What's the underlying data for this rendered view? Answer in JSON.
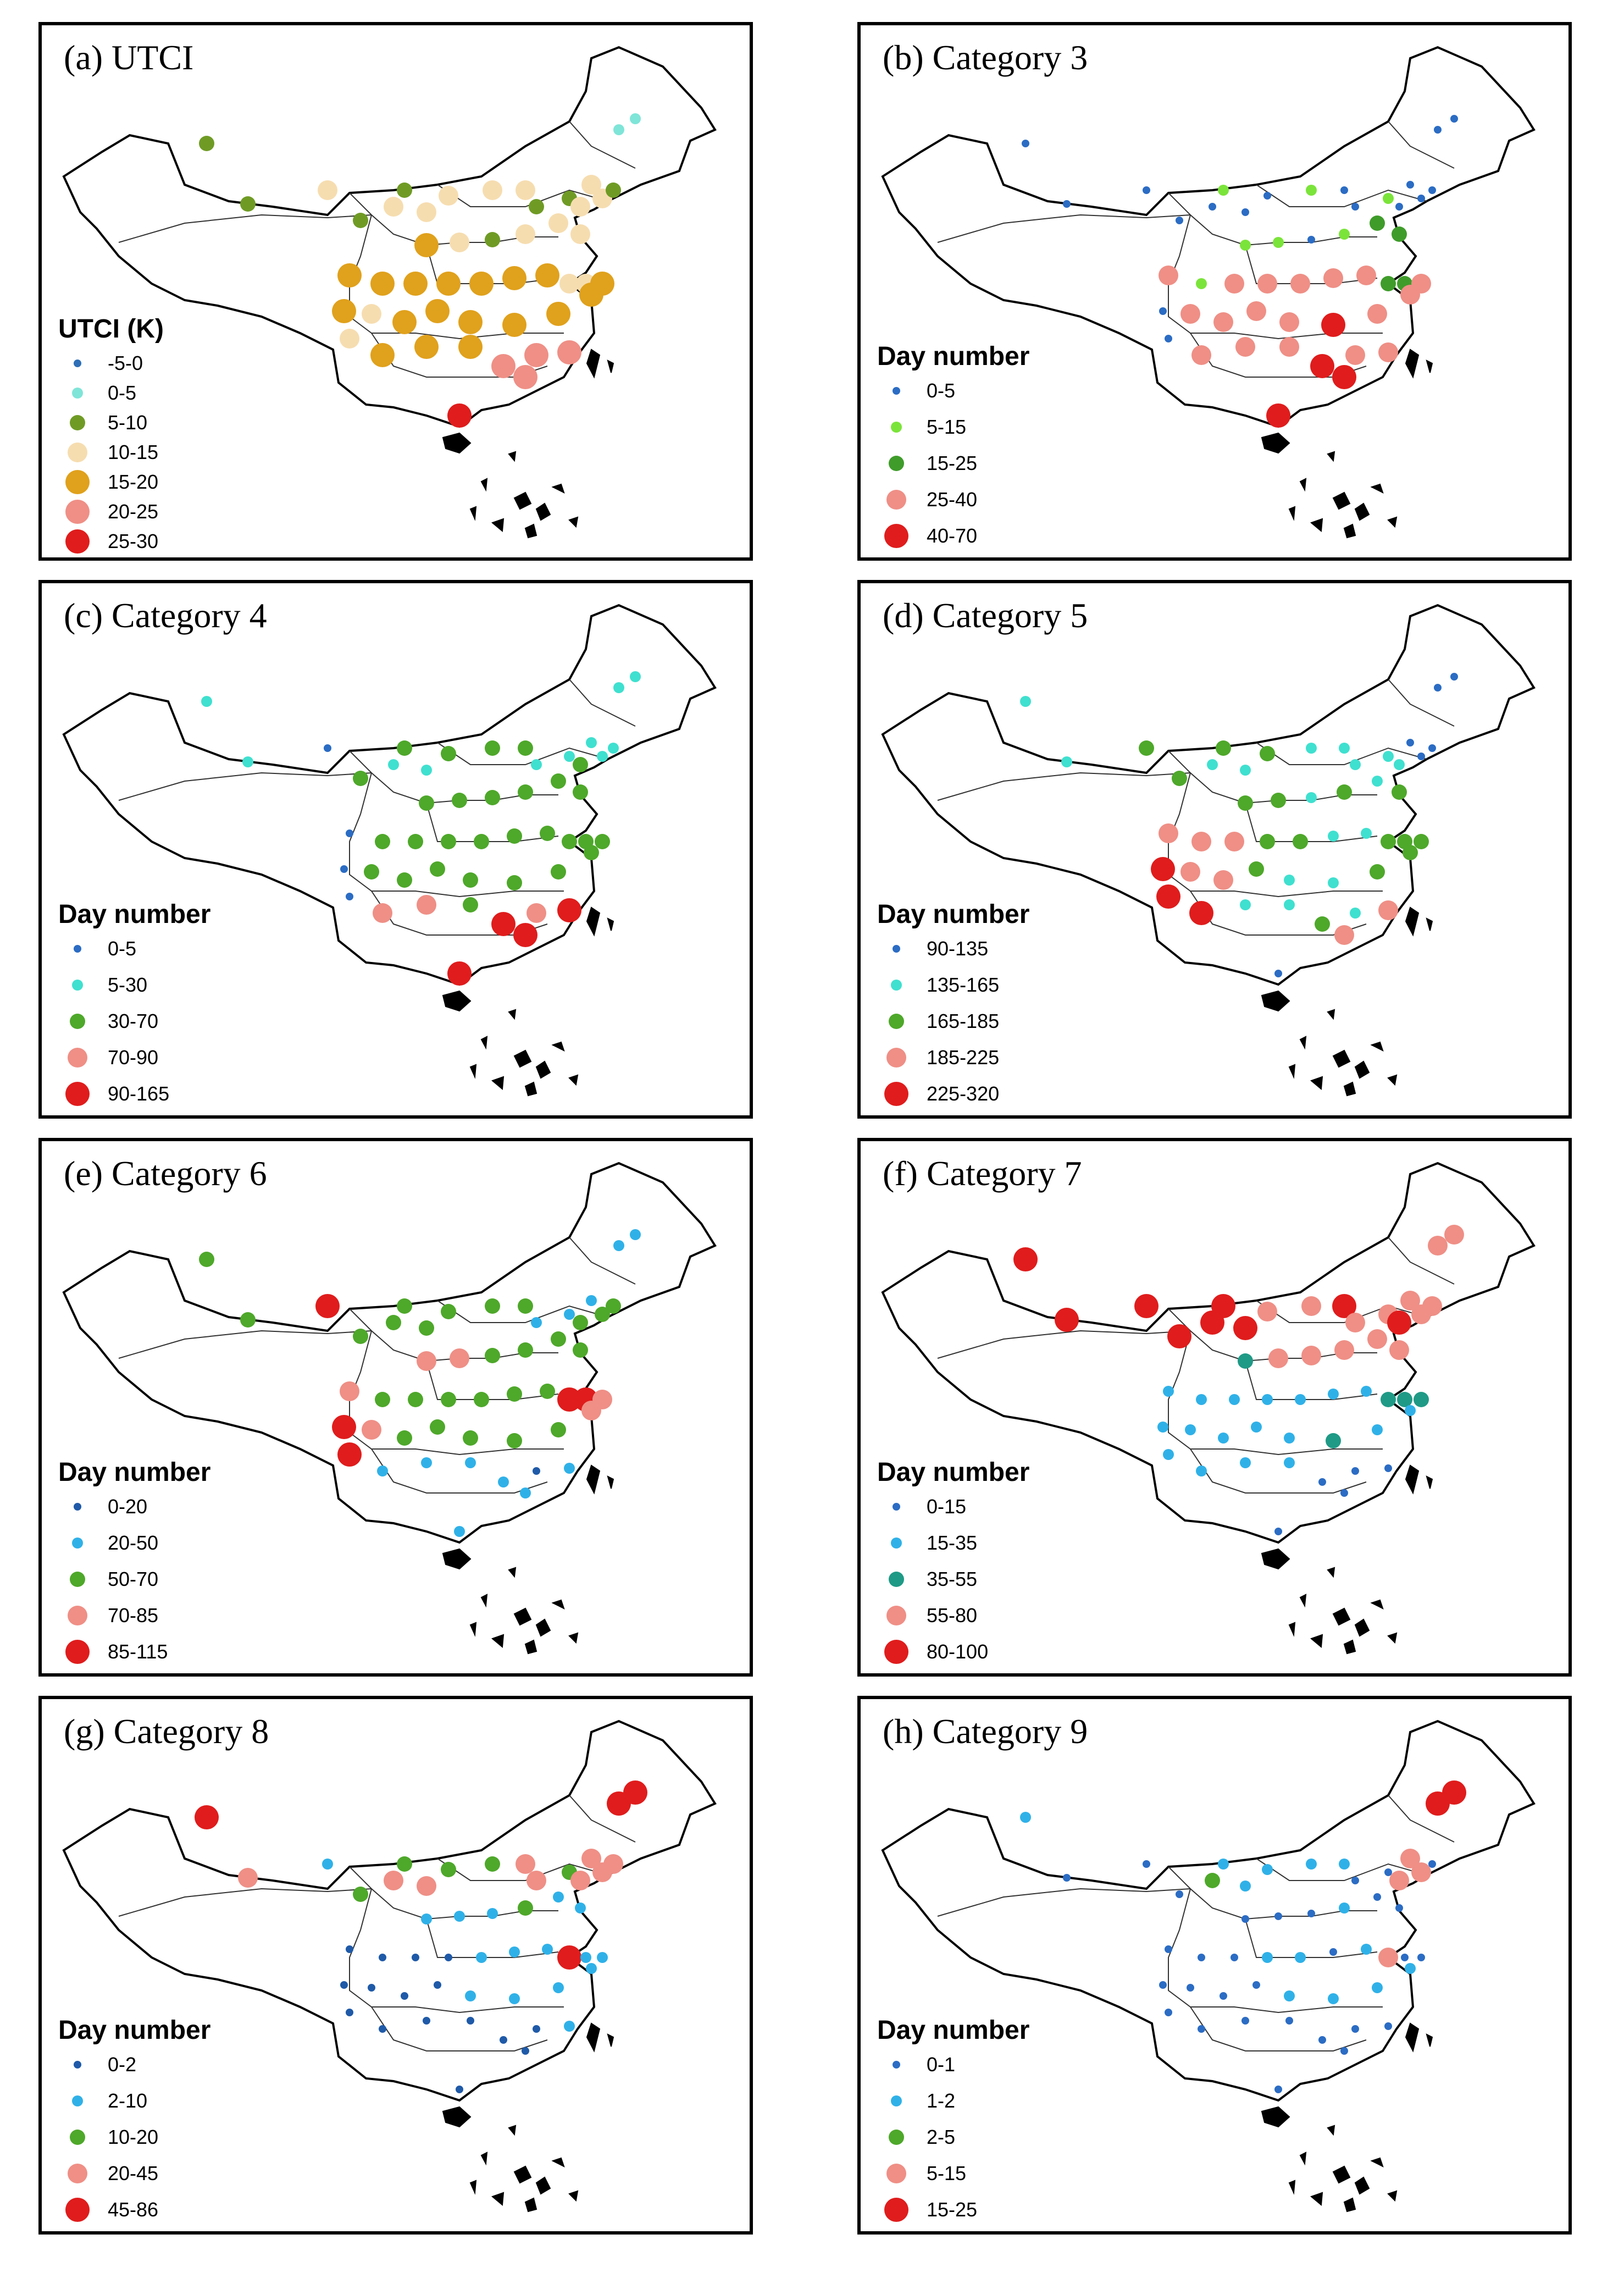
{
  "figure": {
    "description_terms": "station-based maps of China",
    "panels": [
      {
        "label": "(a) UTCI",
        "legend_title": "UTCI (K)",
        "legend": [
          {
            "label": "-5-0",
            "color": "#2e6fb7"
          },
          {
            "label": "0-5",
            "color": "#7fe5d8"
          },
          {
            "label": "5-10",
            "color": "#6f9b25"
          },
          {
            "label": "10-15",
            "color": "#f6ddb0"
          },
          {
            "label": "15-20",
            "color": "#e0a11c"
          },
          {
            "label": "20-25",
            "color": "#ef8f86"
          },
          {
            "label": "25-30",
            "color": "#e01c1c"
          }
        ]
      },
      {
        "label": "(b) Category 3",
        "legend_title": "Day number",
        "legend": [
          {
            "label": "0-5",
            "color": "#2b6cc4"
          },
          {
            "label": "5-15",
            "color": "#7be43a"
          },
          {
            "label": "15-25",
            "color": "#3f9c2a"
          },
          {
            "label": "25-40",
            "color": "#ef8f86"
          },
          {
            "label": "40-70",
            "color": "#e01c1c"
          }
        ]
      },
      {
        "label": "(c) Category 4",
        "legend_title": "Day number",
        "legend": [
          {
            "label": "0-5",
            "color": "#2b6cc4"
          },
          {
            "label": "5-30",
            "color": "#3fe0cf"
          },
          {
            "label": "30-70",
            "color": "#4ea82a"
          },
          {
            "label": "70-90",
            "color": "#ef8f86"
          },
          {
            "label": "90-165",
            "color": "#e01c1c"
          }
        ]
      },
      {
        "label": "(d) Category 5",
        "legend_title": "Day number",
        "legend": [
          {
            "label": "90-135",
            "color": "#2b6cc4"
          },
          {
            "label": "135-165",
            "color": "#3fe0cf"
          },
          {
            "label": "165-185",
            "color": "#4ea82a"
          },
          {
            "label": "185-225",
            "color": "#ef8f86"
          },
          {
            "label": "225-320",
            "color": "#e01c1c"
          }
        ]
      },
      {
        "label": "(e) Category 6",
        "legend_title": "Day number",
        "legend": [
          {
            "label": "0-20",
            "color": "#1f5aa8"
          },
          {
            "label": "20-50",
            "color": "#2fb1e8"
          },
          {
            "label": "50-70",
            "color": "#4ea82a"
          },
          {
            "label": "70-85",
            "color": "#ef8f86"
          },
          {
            "label": "85-115",
            "color": "#e01c1c"
          }
        ]
      },
      {
        "label": "(f) Category 7",
        "legend_title": "Day number",
        "legend": [
          {
            "label": "0-15",
            "color": "#2b6cc4"
          },
          {
            "label": "15-35",
            "color": "#2fb1e8"
          },
          {
            "label": "35-55",
            "color": "#1f9a86"
          },
          {
            "label": "55-80",
            "color": "#ef8f86"
          },
          {
            "label": "80-100",
            "color": "#e01c1c"
          }
        ]
      },
      {
        "label": "(g) Category 8",
        "legend_title": "Day number",
        "legend": [
          {
            "label": "0-2",
            "color": "#1f5aa8"
          },
          {
            "label": "2-10",
            "color": "#2fb1e8"
          },
          {
            "label": "10-20",
            "color": "#4ea82a"
          },
          {
            "label": "20-45",
            "color": "#ef8f86"
          },
          {
            "label": "45-86",
            "color": "#e01c1c"
          }
        ]
      },
      {
        "label": "(h) Category 9",
        "legend_title": "Day number",
        "legend": [
          {
            "label": "0-1",
            "color": "#2b6cc4"
          },
          {
            "label": "1-2",
            "color": "#2fb1e8"
          },
          {
            "label": "2-5",
            "color": "#4ea82a"
          },
          {
            "label": "5-15",
            "color": "#ef8f86"
          },
          {
            "label": "15-25",
            "color": "#e01c1c"
          }
        ]
      }
    ]
  }
}
